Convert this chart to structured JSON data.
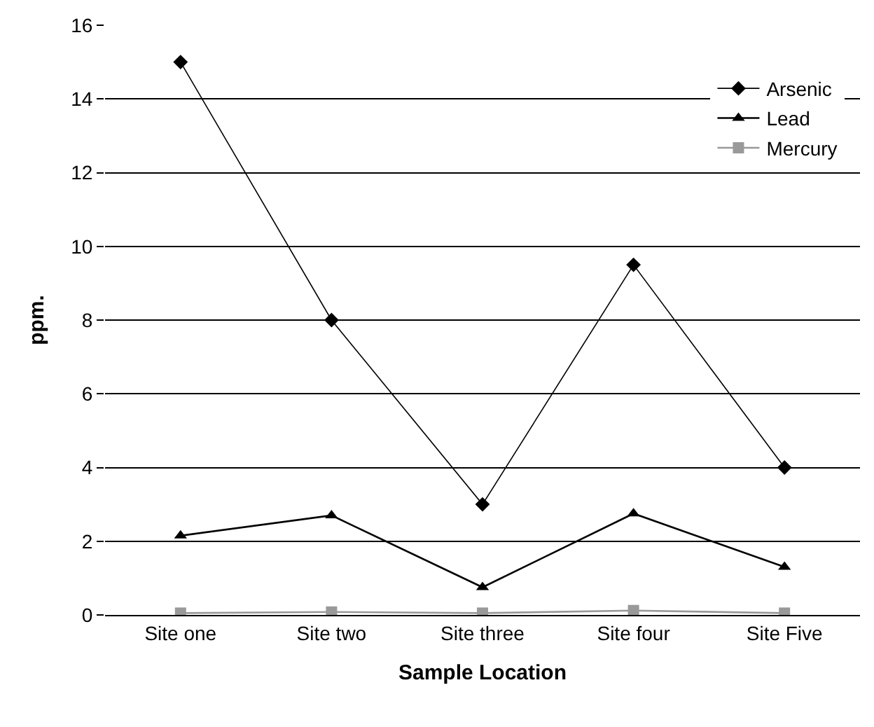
{
  "chart_data": {
    "type": "line",
    "xlabel": "Sample Location",
    "ylabel": "ppm.",
    "categories": [
      "Site one",
      "Site two",
      "Site three",
      "Site four",
      "Site Five"
    ],
    "series": [
      {
        "name": "Arsenic",
        "color": "#000000",
        "marker": "diamond",
        "values": [
          15,
          8,
          3,
          9.5,
          4
        ]
      },
      {
        "name": "Lead",
        "color": "#000000",
        "marker": "triangle",
        "values": [
          2.15,
          2.7,
          0.75,
          2.75,
          1.3
        ]
      },
      {
        "name": "Mercury",
        "color": "#999999",
        "marker": "square",
        "values": [
          0.05,
          0.08,
          0.05,
          0.12,
          0.05
        ]
      }
    ],
    "ylim": [
      0,
      16
    ],
    "yticks": [
      0,
      2,
      4,
      6,
      8,
      10,
      12,
      14,
      16
    ],
    "grid": "y",
    "legend": "top right",
    "line_style": "solid"
  }
}
